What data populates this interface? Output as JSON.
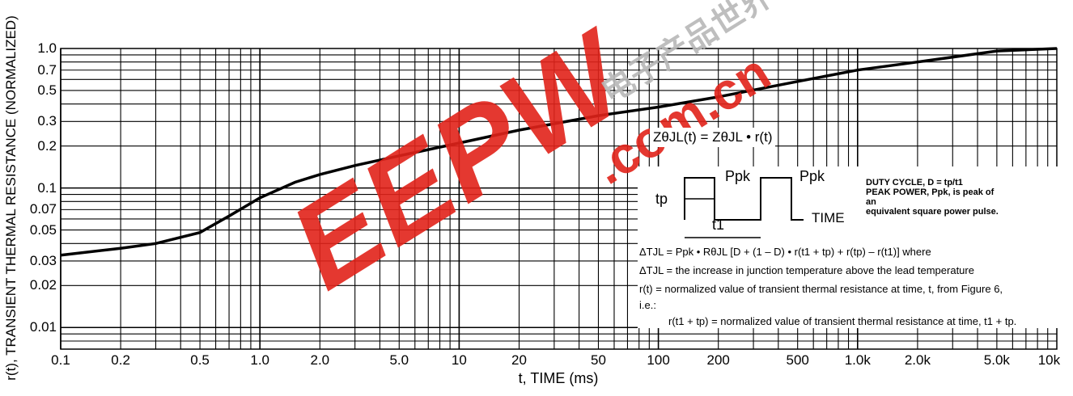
{
  "chart_data": {
    "type": "line",
    "title": "",
    "xlabel": "t, TIME (ms)",
    "ylabel": "r(t), TRANSIENT THERMAL RESISTANCE (NORMALIZED)",
    "x_scale": "log",
    "y_scale": "log",
    "xlim": [
      0.1,
      10000
    ],
    "ylim": [
      0.007,
      1.0
    ],
    "grid": true,
    "x_tick_labels": [
      "0.1",
      "0.2",
      "0.5",
      "1.0",
      "2.0",
      "5.0",
      "10",
      "20",
      "50",
      "100",
      "200",
      "500",
      "1.0k",
      "2.0k",
      "5.0k",
      "10k"
    ],
    "x_tick_values": [
      0.1,
      0.2,
      0.5,
      1,
      2,
      5,
      10,
      20,
      50,
      100,
      200,
      500,
      1000,
      2000,
      5000,
      10000
    ],
    "y_tick_labels": [
      "1.0",
      "0.7",
      "0.5",
      "0.3",
      "0.2",
      "0.1",
      "0.07",
      "0.05",
      "0.03",
      "0.02",
      "0.01"
    ],
    "y_tick_values": [
      1.0,
      0.7,
      0.5,
      0.3,
      0.2,
      0.1,
      0.07,
      0.05,
      0.03,
      0.02,
      0.01
    ],
    "series": [
      {
        "x": [
          0.1,
          0.2,
          0.3,
          0.5,
          0.7,
          1.0,
          1.5,
          2.0,
          3.0,
          5.0,
          10,
          20,
          50,
          100,
          200,
          500,
          1000,
          2000,
          5000,
          10000
        ],
        "y": [
          0.033,
          0.037,
          0.04,
          0.048,
          0.063,
          0.085,
          0.11,
          0.125,
          0.145,
          0.17,
          0.21,
          0.26,
          0.33,
          0.38,
          0.45,
          0.58,
          0.7,
          0.8,
          0.96,
          1.0
        ]
      }
    ]
  },
  "labels": {
    "y_axis_title": "r(t), TRANSIENT THERMAL RESISTANCE (NORMALIZED)",
    "x_axis_title": "t, TIME (ms)",
    "formula": "ZθJL(t) = ZθJL • r(t)",
    "tp": "tp",
    "ppk_1": "Ppk",
    "ppk_2": "Ppk",
    "t1": "t1",
    "time_axis": "TIME",
    "duty_1": "DUTY CYCLE, D = tp/t1",
    "duty_2": "PEAK POWER, Ppk, is peak of",
    "duty_3": "an",
    "duty_4": "equivalent square power pulse.",
    "eq_1": "ΔTJL = Ppk • RθJL [D + (1 – D) • r(t1 + tp) + r(tp) – r(t1)] where",
    "eq_2": "ΔTJL = the increase in junction temperature above the lead temperature",
    "eq_3": "r(t) = normalized value of transient thermal resistance at time, t, from Figure 6,",
    "eq_4": "i.e.:",
    "eq_5": "r(t1 + tp) = normalized value of transient thermal resistance at time, t1 + tp."
  },
  "watermark": {
    "text_1": "EEPW",
    "text_2": ".com.cn",
    "text_3": "电子产品世界",
    "color": "#e2231a"
  }
}
